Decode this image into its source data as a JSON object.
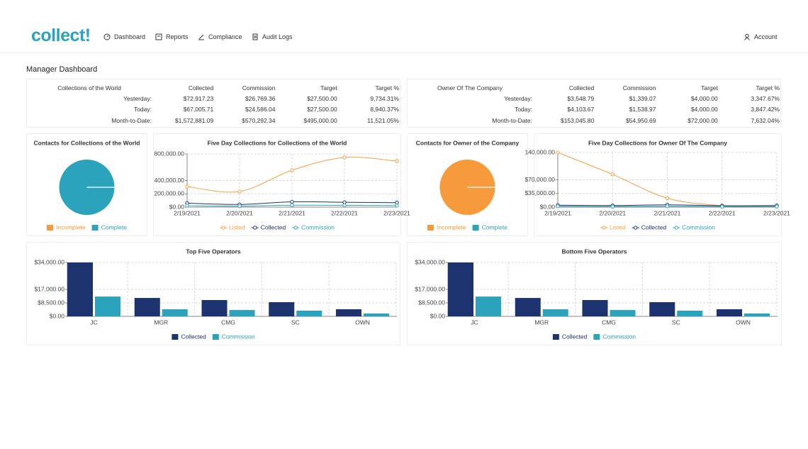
{
  "nav": {
    "logo": "collect!",
    "items": [
      "Dashboard",
      "Reports",
      "Compliance",
      "Audit Logs"
    ],
    "account": "Account"
  },
  "page_title": "Manager Dashboard",
  "tables": [
    {
      "header": [
        "Collections of the World",
        "Collected",
        "Commission",
        "Target",
        "Target %"
      ],
      "rows": [
        [
          "Yesterday:",
          "$72,917.23",
          "$26,769.36",
          "$27,500.00",
          "9,734.31%"
        ],
        [
          "Today:",
          "$67,005.71",
          "$24,586.04",
          "$27,500.00",
          "8,940.37%"
        ],
        [
          "Month-to-Date:",
          "$1,572,881.09",
          "$570,292.34",
          "$495,000.00",
          "11,521.05%"
        ]
      ]
    },
    {
      "header": [
        "Owner Of The Company",
        "Collected",
        "Commission",
        "Target",
        "Target %"
      ],
      "rows": [
        [
          "Yesterday:",
          "$3,548.79",
          "$1,339.07",
          "$4,000.00",
          "3,347.67%"
        ],
        [
          "Today:",
          "$4,103.67",
          "$1,538.97",
          "$4,000.00",
          "3,847.42%"
        ],
        [
          "Month-to-Date:",
          "$153,045.80",
          "$54,950.69",
          "$72,000.00",
          "7,632.04%"
        ]
      ]
    }
  ],
  "chart_data": [
    {
      "type": "pie",
      "title": "Contacts for Collections of the World",
      "categories": [
        "Incomplete",
        "Complete"
      ],
      "values": [
        0,
        100
      ],
      "colors": [
        "#f79a3c",
        "#2ba3bd"
      ]
    },
    {
      "type": "line",
      "title": "Five Day Collections for Collections of the World",
      "categories": [
        "2/19/2021",
        "2/20/2021",
        "2/21/2021",
        "2/22/2021",
        "2/23/2021"
      ],
      "series": [
        {
          "name": "Listed",
          "color": "#f7a042",
          "values": [
            309000,
            235000,
            555000,
            747000,
            693000
          ]
        },
        {
          "name": "Collected",
          "color": "#1c3370",
          "values": [
            60000,
            40000,
            80000,
            72917.23,
            67005.71
          ]
        },
        {
          "name": "Commission",
          "color": "#2ba3bd",
          "values": [
            22000,
            15000,
            29000,
            26769.36,
            24586.04
          ]
        }
      ],
      "ylim": [
        0,
        800000
      ],
      "yticks": [
        {
          "value": 0,
          "label": "$0.00"
        },
        {
          "value": 200000,
          "label": "200,000.00"
        },
        {
          "value": 400000,
          "label": "400,000.00"
        },
        {
          "value": 800000,
          "label": "800,000.00"
        }
      ],
      "grid": true
    },
    {
      "type": "pie",
      "title": "Contacts for Owner of the Company",
      "categories": [
        "Incomplete",
        "Complete"
      ],
      "values": [
        100,
        0
      ],
      "colors": [
        "#f79a3c",
        "#2ba3bd"
      ]
    },
    {
      "type": "line",
      "title": "Five Day Collections for Owner Of The Company",
      "categories": [
        "2/19/2021",
        "2/20/2021",
        "2/21/2021",
        "2/22/2021",
        "2/23/2021"
      ],
      "series": [
        {
          "name": "Listed",
          "color": "#f7a042",
          "values": [
            140000,
            84000,
            23000,
            4000,
            2000
          ]
        },
        {
          "name": "Collected",
          "color": "#1c3370",
          "values": [
            5000,
            4000,
            6000,
            3548.79,
            4103.67
          ]
        },
        {
          "name": "Commission",
          "color": "#2ba3bd",
          "values": [
            2000,
            1500,
            2200,
            1339.07,
            1538.97
          ]
        }
      ],
      "ylim": [
        0,
        140000
      ],
      "yticks": [
        {
          "value": 0,
          "label": "$0.00"
        },
        {
          "value": 35000,
          "label": "$35,000.00"
        },
        {
          "value": 70000,
          "label": "$70,000.00"
        },
        {
          "value": 140000,
          "label": "140,000.00"
        }
      ],
      "grid": true
    },
    {
      "type": "bar",
      "title": "Top Five Operators",
      "categories": [
        "JC",
        "MGR",
        "CMG",
        "SC",
        "OWN"
      ],
      "series": [
        {
          "name": "Collected",
          "color": "#1c3370",
          "values": [
            34000,
            11600,
            10300,
            8950,
            4470
          ]
        },
        {
          "name": "Commission",
          "color": "#2ba3bd",
          "values": [
            12500,
            4470,
            4000,
            3580,
            1800
          ]
        }
      ],
      "ylim": [
        0,
        34000
      ],
      "yticks": [
        {
          "value": 0,
          "label": "$0.00"
        },
        {
          "value": 8500,
          "label": "$8,500.00"
        },
        {
          "value": 17000,
          "label": "$17,000.00"
        },
        {
          "value": 34000,
          "label": "$34,000.00"
        }
      ],
      "grid": true
    },
    {
      "type": "bar",
      "title": "Bottom Five Operators",
      "categories": [
        "JC",
        "MGR",
        "CMG",
        "SC",
        "OWN"
      ],
      "series": [
        {
          "name": "Collected",
          "color": "#1c3370",
          "values": [
            34000,
            11600,
            10300,
            8950,
            4470
          ]
        },
        {
          "name": "Commission",
          "color": "#2ba3bd",
          "values": [
            12500,
            4470,
            4000,
            3580,
            1800
          ]
        }
      ],
      "ylim": [
        0,
        34000
      ],
      "yticks": [
        {
          "value": 0,
          "label": "$0.00"
        },
        {
          "value": 8500,
          "label": "$8,500.00"
        },
        {
          "value": 17000,
          "label": "$17,000.00"
        },
        {
          "value": 34000,
          "label": "$34,000.00"
        }
      ],
      "grid": true
    }
  ]
}
